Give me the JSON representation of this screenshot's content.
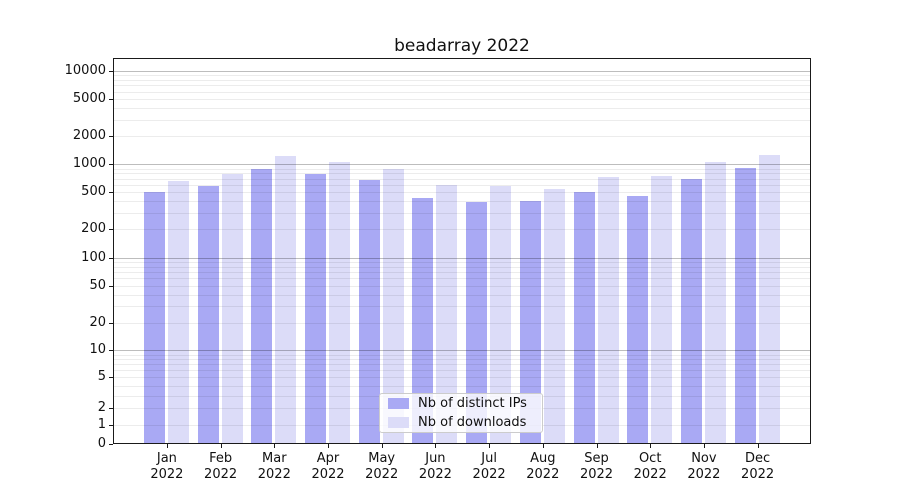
{
  "title": "beadarray 2022",
  "chart_data": {
    "type": "bar",
    "title": "beadarray 2022",
    "x_axis": {
      "categories": [
        "Jan",
        "Feb",
        "Mar",
        "Apr",
        "May",
        "Jun",
        "Jul",
        "Aug",
        "Sep",
        "Oct",
        "Nov",
        "Dec"
      ],
      "year_label": "2022"
    },
    "y_axis": {
      "scale": "pseudo-log (asinh), includes 0",
      "ticks": [
        0,
        1,
        2,
        5,
        10,
        20,
        50,
        100,
        200,
        500,
        1000,
        2000,
        5000,
        10000
      ],
      "ylim": [
        0,
        13500
      ]
    },
    "series": [
      {
        "name": "Nb of distinct IPs",
        "key": "distinct-ips",
        "color": "#a9a9f4",
        "values": [
          510,
          580,
          880,
          790,
          680,
          430,
          395,
          405,
          500,
          460,
          695,
          915
        ]
      },
      {
        "name": "Nb of downloads",
        "key": "downloads",
        "color": "#dcdcf8",
        "values": [
          660,
          795,
          1220,
          1065,
          895,
          595,
          590,
          545,
          725,
          750,
          1070,
          1250
        ]
      }
    ],
    "grid": {
      "horizontal_only": true,
      "minor_at": "2-9 of each decade",
      "major_at": [
        10,
        100,
        1000,
        10000
      ]
    },
    "legend": {
      "position": "inside-bottom-center",
      "items": [
        "Nb of distinct IPs",
        "Nb of downloads"
      ]
    }
  }
}
